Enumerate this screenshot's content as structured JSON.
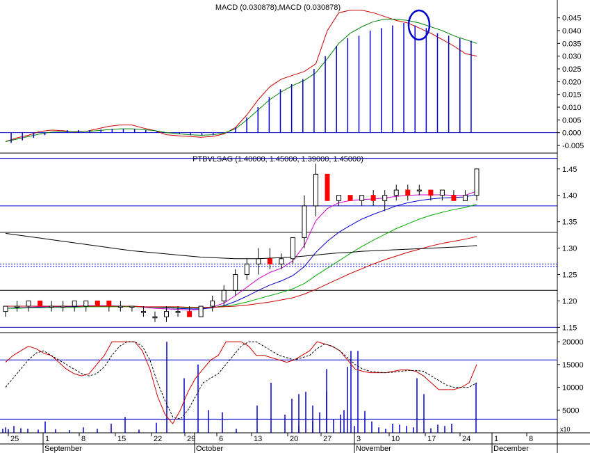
{
  "chart_data": [
    {
      "type": "line",
      "title": "MACD (0.030878),MACD (0.030878)",
      "ylim": [
        -0.008,
        0.052
      ],
      "yticks": [
        "0.045",
        "0.040",
        "0.035",
        "0.030",
        "0.025",
        "0.020",
        "0.015",
        "0.010",
        "0.005",
        "0.000",
        "-0.005"
      ],
      "ytick_values": [
        0.045,
        0.04,
        0.035,
        0.03,
        0.025,
        0.02,
        0.015,
        0.01,
        0.005,
        0.0,
        -0.005
      ],
      "hlines": [
        0.0
      ],
      "series": [
        {
          "color": "#cc0000",
          "values": [
            -0.0035,
            -0.002,
            -0.001,
            0.0005,
            0.001,
            0.0008,
            0.0002,
            0.0005,
            0.0015,
            0.0025,
            0.003,
            0.003,
            0.0018,
            0.0008,
            -0.0008,
            -0.0012,
            -0.0015,
            -0.0018,
            -0.0015,
            -0.0005,
            0.002,
            0.007,
            0.013,
            0.018,
            0.021,
            0.0225,
            0.024,
            0.027,
            0.04,
            0.047,
            0.048,
            0.048,
            0.047,
            0.0455,
            0.044,
            0.043,
            0.041,
            0.039,
            0.0365,
            0.034,
            0.031,
            0.03
          ]
        },
        {
          "color": "#008000",
          "values": [
            -0.0035,
            -0.0025,
            -0.0015,
            -0.0005,
            0.0002,
            0.0004,
            0.0004,
            0.0005,
            0.0008,
            0.0012,
            0.0015,
            0.0015,
            0.0012,
            0.0008,
            0.0,
            -0.0004,
            -0.0008,
            -0.001,
            -0.0008,
            -0.0002,
            0.0015,
            0.005,
            0.009,
            0.013,
            0.016,
            0.0185,
            0.0205,
            0.0235,
            0.029,
            0.035,
            0.039,
            0.0415,
            0.0435,
            0.0445,
            0.0445,
            0.044,
            0.043,
            0.0415,
            0.04,
            0.038,
            0.0365,
            0.035
          ]
        },
        {
          "color": "#0000cc",
          "style": "histogram",
          "values": [
            -0.004,
            -0.003,
            -0.002,
            -0.001,
            0.0,
            0.001,
            0.001,
            0.001,
            0.0012,
            0.0015,
            0.0015,
            0.0015,
            0.001,
            0.0005,
            0.0,
            -0.0005,
            -0.001,
            -0.001,
            -0.001,
            0.0,
            0.002,
            0.006,
            0.01,
            0.014,
            0.017,
            0.019,
            0.021,
            0.025,
            0.03,
            0.034,
            0.037,
            0.038,
            0.04,
            0.041,
            0.042,
            0.043,
            0.042,
            0.041,
            0.039,
            0.038,
            0.037,
            0.036
          ]
        }
      ]
    },
    {
      "type": "candlestick",
      "title": "PTBVLSAG (1.40000, 1.45000, 1.39000, 1.45000)",
      "ylim": [
        1.14,
        1.48
      ],
      "yticks": [
        "1.45",
        "1.40",
        "1.35",
        "1.30",
        "1.25",
        "1.20",
        "1.15"
      ],
      "ytick_values": [
        1.45,
        1.4,
        1.35,
        1.3,
        1.25,
        1.2,
        1.15
      ],
      "hlines": [
        1.47,
        1.38,
        1.33,
        1.22,
        1.15
      ],
      "dotted_hlines": [
        1.27,
        1.265
      ],
      "candles": [
        [
          1.18,
          1.19,
          1.17,
          1.19
        ],
        [
          1.19,
          1.2,
          1.18,
          1.19
        ],
        [
          1.19,
          1.2,
          1.18,
          1.2
        ],
        [
          1.2,
          1.2,
          1.19,
          1.19
        ],
        [
          1.19,
          1.2,
          1.18,
          1.19
        ],
        [
          1.19,
          1.2,
          1.18,
          1.19
        ],
        [
          1.19,
          1.2,
          1.18,
          1.2
        ],
        [
          1.19,
          1.2,
          1.18,
          1.2
        ],
        [
          1.2,
          1.2,
          1.19,
          1.19
        ],
        [
          1.2,
          1.2,
          1.18,
          1.19
        ],
        [
          1.19,
          1.2,
          1.18,
          1.19
        ],
        [
          1.19,
          1.19,
          1.18,
          1.19
        ],
        [
          1.18,
          1.19,
          1.17,
          1.18
        ],
        [
          1.17,
          1.18,
          1.16,
          1.17
        ],
        [
          1.17,
          1.19,
          1.16,
          1.18
        ],
        [
          1.18,
          1.19,
          1.17,
          1.18
        ],
        [
          1.18,
          1.19,
          1.17,
          1.17
        ],
        [
          1.17,
          1.19,
          1.17,
          1.19
        ],
        [
          1.19,
          1.21,
          1.18,
          1.2
        ],
        [
          1.2,
          1.23,
          1.19,
          1.22
        ],
        [
          1.22,
          1.26,
          1.21,
          1.25
        ],
        [
          1.25,
          1.28,
          1.24,
          1.27
        ],
        [
          1.27,
          1.3,
          1.25,
          1.28
        ],
        [
          1.28,
          1.3,
          1.26,
          1.27
        ],
        [
          1.27,
          1.29,
          1.26,
          1.28
        ],
        [
          1.28,
          1.32,
          1.27,
          1.32
        ],
        [
          1.32,
          1.4,
          1.3,
          1.38
        ],
        [
          1.38,
          1.46,
          1.36,
          1.44
        ],
        [
          1.44,
          1.44,
          1.39,
          1.39
        ],
        [
          1.39,
          1.4,
          1.38,
          1.4
        ],
        [
          1.4,
          1.4,
          1.39,
          1.39
        ],
        [
          1.39,
          1.4,
          1.38,
          1.4
        ],
        [
          1.4,
          1.41,
          1.38,
          1.39
        ],
        [
          1.39,
          1.41,
          1.37,
          1.4
        ],
        [
          1.4,
          1.42,
          1.39,
          1.41
        ],
        [
          1.41,
          1.42,
          1.39,
          1.4
        ],
        [
          1.41,
          1.42,
          1.4,
          1.41
        ],
        [
          1.41,
          1.41,
          1.39,
          1.4
        ],
        [
          1.4,
          1.41,
          1.39,
          1.41
        ],
        [
          1.4,
          1.41,
          1.39,
          1.39
        ],
        [
          1.39,
          1.41,
          1.39,
          1.4
        ],
        [
          1.4,
          1.45,
          1.39,
          1.45
        ]
      ],
      "series": [
        {
          "color": "#cc00cc",
          "values": [
            1.186,
            1.187,
            1.188,
            1.189,
            1.189,
            1.19,
            1.19,
            1.191,
            1.191,
            1.191,
            1.19,
            1.19,
            1.188,
            1.186,
            1.185,
            1.184,
            1.183,
            1.184,
            1.188,
            1.196,
            1.21,
            1.226,
            1.242,
            1.254,
            1.262,
            1.276,
            1.305,
            1.352,
            1.375,
            1.386,
            1.39,
            1.392,
            1.393,
            1.395,
            1.398,
            1.4,
            1.401,
            1.401,
            1.401,
            1.4,
            1.4,
            1.408
          ]
        },
        {
          "color": "#0000cc",
          "values": [
            1.186,
            1.187,
            1.187,
            1.188,
            1.188,
            1.189,
            1.189,
            1.19,
            1.19,
            1.19,
            1.19,
            1.19,
            1.189,
            1.188,
            1.187,
            1.186,
            1.185,
            1.185,
            1.187,
            1.191,
            1.199,
            1.209,
            1.22,
            1.23,
            1.238,
            1.248,
            1.265,
            1.292,
            1.313,
            1.33,
            1.343,
            1.355,
            1.364,
            1.372,
            1.38,
            1.386,
            1.39,
            1.393,
            1.395,
            1.396,
            1.397,
            1.402
          ]
        },
        {
          "color": "#00aa00",
          "values": [
            1.186,
            1.186,
            1.187,
            1.187,
            1.188,
            1.188,
            1.188,
            1.189,
            1.189,
            1.189,
            1.189,
            1.189,
            1.189,
            1.188,
            1.188,
            1.187,
            1.187,
            1.187,
            1.188,
            1.19,
            1.193,
            1.198,
            1.204,
            1.21,
            1.216,
            1.223,
            1.233,
            1.248,
            1.262,
            1.276,
            1.29,
            1.303,
            1.315,
            1.326,
            1.337,
            1.346,
            1.355,
            1.362,
            1.368,
            1.373,
            1.377,
            1.383
          ]
        },
        {
          "color": "#cc0000",
          "values": [
            1.19,
            1.19,
            1.19,
            1.19,
            1.19,
            1.19,
            1.19,
            1.19,
            1.19,
            1.19,
            1.19,
            1.19,
            1.189,
            1.189,
            1.189,
            1.189,
            1.188,
            1.188,
            1.188,
            1.189,
            1.19,
            1.192,
            1.195,
            1.198,
            1.202,
            1.206,
            1.213,
            1.222,
            1.232,
            1.242,
            1.252,
            1.261,
            1.27,
            1.278,
            1.285,
            1.292,
            1.298,
            1.304,
            1.309,
            1.313,
            1.317,
            1.322
          ]
        },
        {
          "color": "#000000",
          "values": [
            1.328,
            1.325,
            1.322,
            1.319,
            1.316,
            1.313,
            1.31,
            1.307,
            1.304,
            1.301,
            1.298,
            1.295,
            1.293,
            1.291,
            1.289,
            1.287,
            1.285,
            1.283,
            1.282,
            1.281,
            1.28,
            1.28,
            1.28,
            1.281,
            1.282,
            1.283,
            1.285,
            1.287,
            1.289,
            1.291,
            1.292,
            1.294,
            1.295,
            1.296,
            1.297,
            1.298,
            1.299,
            1.3,
            1.301,
            1.302,
            1.303,
            1.305
          ]
        }
      ]
    },
    {
      "type": "bar",
      "ylim": [
        0,
        22000
      ],
      "yticks": [
        "20000",
        "15000",
        "10000",
        "5000"
      ],
      "ytick_values": [
        20000,
        15000,
        10000,
        5000
      ],
      "hlines": [
        16000,
        3000
      ],
      "volume": [
        900,
        1200,
        800,
        1500,
        1000,
        900,
        700,
        2500,
        800,
        600,
        1200,
        900,
        2000,
        3500,
        700,
        2200,
        20000,
        12000,
        15000,
        5000,
        4500,
        900,
        6000,
        11000,
        4000,
        1500,
        2500,
        14000,
        4000,
        1500,
        7500,
        8500,
        9000,
        6000,
        4500,
        9000,
        3000,
        5000,
        14500,
        18000,
        18000,
        4800,
        2500,
        1200,
        900,
        2000,
        1800,
        1500,
        1200,
        12000,
        8500,
        1000,
        1800,
        1500,
        2000,
        11000
      ],
      "volume_x": [
        4,
        8,
        12,
        20,
        30,
        40,
        55,
        65,
        80,
        100,
        120,
        140,
        160,
        180,
        200,
        225,
        240,
        265,
        285,
        300,
        320,
        340,
        370,
        390,
        410,
        430,
        450,
        470,
        490,
        510,
        420,
        430,
        440,
        450,
        460,
        470,
        480,
        495,
        500,
        505,
        515,
        525,
        535,
        545,
        555,
        565,
        575,
        585,
        595,
        600,
        610,
        620,
        630,
        640,
        650,
        685
      ],
      "series": [
        {
          "color": "#cc0000",
          "values": [
            15.5,
            17,
            18,
            19,
            18.5,
            17.5,
            17,
            15.5,
            14,
            13,
            12.5,
            13,
            15,
            17,
            20,
            20,
            20,
            20,
            18,
            14,
            8,
            4,
            2,
            5,
            9,
            12,
            14,
            16,
            17,
            20,
            20,
            20,
            19,
            17,
            17,
            16.5,
            16,
            15.5,
            16,
            17,
            18,
            20,
            19.5,
            19,
            18,
            16,
            14,
            13.5,
            13.2,
            13.2,
            13.2,
            13.5,
            13.8,
            13.8,
            13.5,
            12.5,
            11,
            9.5,
            9.5,
            9.5,
            10,
            11,
            15
          ]
        },
        {
          "color": "#000000",
          "style": "dashed",
          "values": [
            10,
            12,
            14,
            16,
            17.5,
            18,
            17,
            16,
            15,
            14,
            13,
            12.5,
            13,
            14.5,
            17,
            19,
            20,
            20,
            19,
            16,
            11,
            7,
            3.5,
            3,
            5,
            8,
            11,
            12,
            13,
            15,
            17,
            19,
            20,
            20,
            19,
            18,
            17,
            16.5,
            16,
            16.5,
            17,
            18.5,
            19.5,
            19,
            18,
            16.5,
            15,
            14,
            13.5,
            13.3,
            13.2,
            13.3,
            13.5,
            13.7,
            13.7,
            13.5,
            12.5,
            11.5,
            10.5,
            10,
            10,
            10,
            11
          ]
        }
      ]
    }
  ],
  "x_axis": {
    "day_ticks": [
      "25",
      "1",
      "8",
      "15",
      "22",
      "29",
      "6",
      "13",
      "20",
      "27",
      "3",
      "10",
      "17",
      "24",
      "1",
      "8"
    ],
    "months": [
      "September",
      "October",
      "November",
      "December"
    ]
  },
  "scale_label": "x10",
  "annotation": {
    "color": "#0000cc"
  }
}
